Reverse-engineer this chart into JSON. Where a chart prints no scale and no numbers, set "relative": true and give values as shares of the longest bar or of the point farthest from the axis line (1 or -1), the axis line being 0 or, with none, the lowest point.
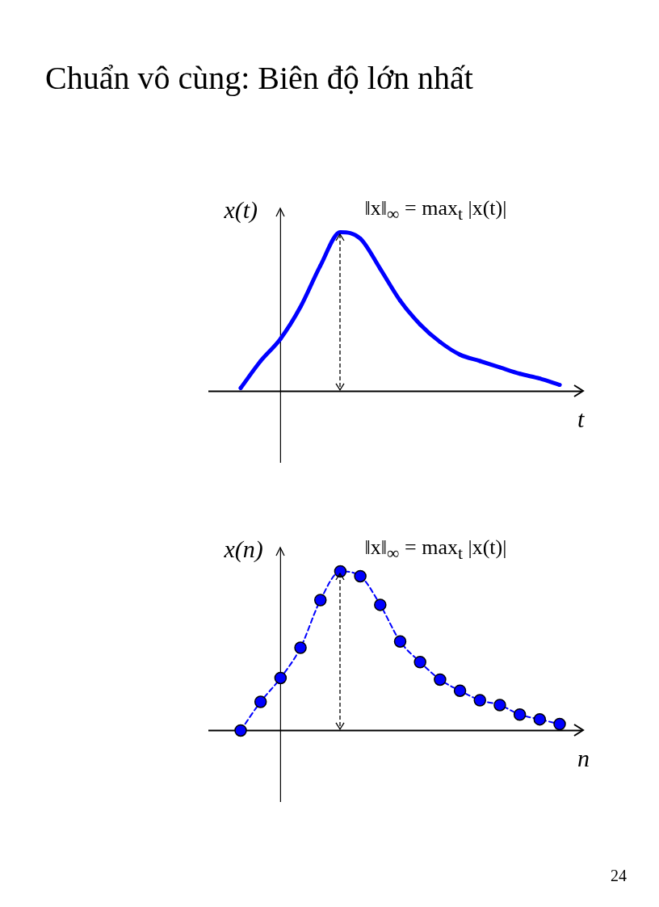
{
  "chart_data": [
    {
      "type": "line",
      "title": "Chuẩn vô cùng: Biên độ lớn nhất",
      "xlabel": "t",
      "ylabel": "x(t)",
      "relative": true,
      "marker": "none",
      "line_style": "solid",
      "categories": [
        null,
        null,
        null,
        null,
        null,
        null,
        null,
        null,
        null,
        null,
        null,
        null,
        null,
        null,
        null,
        null,
        null
      ],
      "series": [
        {
          "color": "#0000ff",
          "values": [
            0.02,
            0.19,
            0.33,
            0.53,
            0.79,
            1,
            0.96,
            0.77,
            0.57,
            0.42,
            0.31,
            0.23,
            0.19,
            0.15,
            0.11,
            0.08,
            0.04
          ]
        }
      ],
      "annotations": [
        "‖x‖$_{∞}$ = max$_{t}$ |x(t)|"
      ]
    },
    {
      "type": "line",
      "xlabel": "n",
      "ylabel": "x(n)",
      "relative": true,
      "marker": "circle",
      "line_style": "dashed",
      "categories": [
        null,
        null,
        null,
        null,
        null,
        null,
        null,
        null,
        null,
        null,
        null,
        null,
        null,
        null,
        null,
        null,
        null
      ],
      "series": [
        {
          "color": "#0000ff",
          "values": [
            0,
            0.18,
            0.33,
            0.52,
            0.82,
            1,
            0.97,
            0.79,
            0.56,
            0.43,
            0.32,
            0.25,
            0.19,
            0.16,
            0.1,
            0.07,
            0.04
          ]
        }
      ],
      "annotations": [
        "‖x‖$_{∞}$ = max$_{t}$ |x(t)|",
        "24"
      ]
    }
  ]
}
